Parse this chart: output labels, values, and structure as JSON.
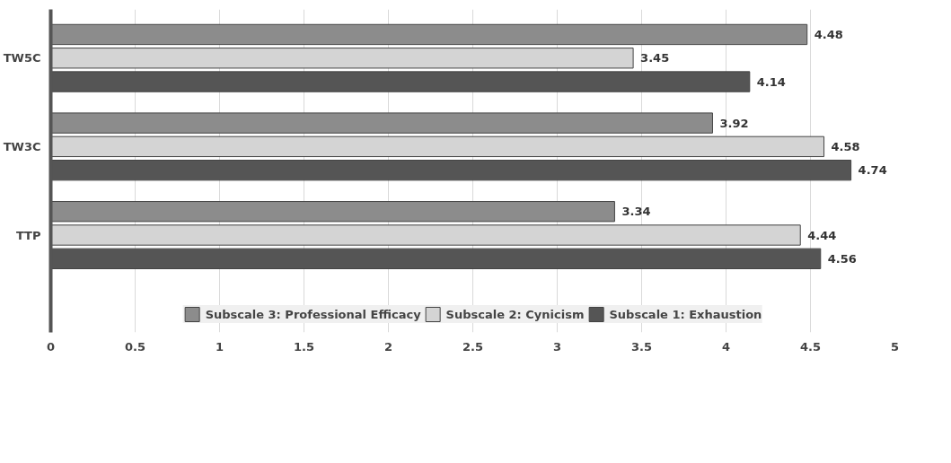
{
  "chart_data": {
    "type": "bar",
    "orientation": "horizontal",
    "categories": [
      "TW5C",
      "TW3C",
      "TTP"
    ],
    "series": [
      {
        "name": "Subscale 3: Professional Efficacy",
        "color": "#8c8c8c",
        "values": [
          4.48,
          3.92,
          3.34
        ]
      },
      {
        "name": "Subscale 2: Cynicism",
        "color": "#d4d4d4",
        "values": [
          3.45,
          4.58,
          4.44
        ]
      },
      {
        "name": "Subscale 1: Exhaustion",
        "color": "#555555",
        "values": [
          4.14,
          4.74,
          4.56
        ]
      }
    ],
    "xlim": [
      0,
      5
    ],
    "xticks": [
      0,
      0.5,
      1,
      1.5,
      2,
      2.5,
      3,
      3.5,
      4,
      4.5,
      5
    ],
    "grid": "x",
    "legend": "bottom",
    "data_labels": true
  }
}
